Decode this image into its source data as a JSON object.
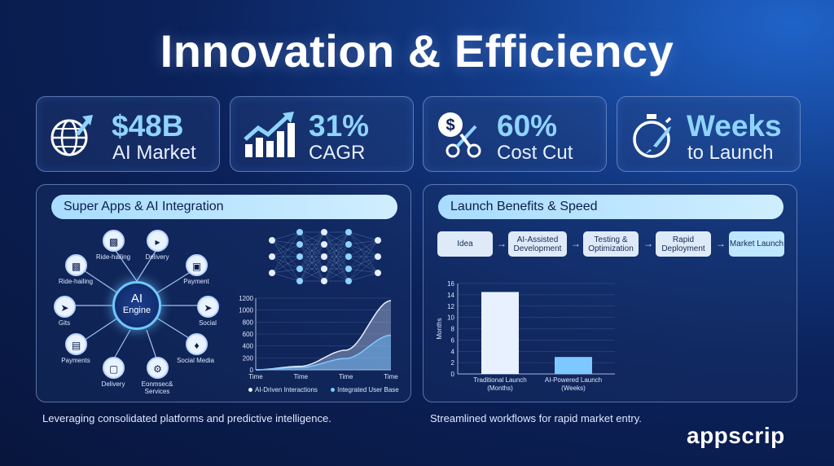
{
  "title": "Innovation & Efficiency",
  "stats": [
    {
      "value": "$48B",
      "label": "AI Market",
      "icon": "globe-growth-icon"
    },
    {
      "value": "31%",
      "label": "CAGR",
      "icon": "growth-chart-icon"
    },
    {
      "value": "60%",
      "label": "Cost Cut",
      "icon": "cost-cut-icon"
    },
    {
      "value": "Weeks",
      "label": "to Launch",
      "icon": "stopwatch-rocket-icon"
    }
  ],
  "left_panel": {
    "heading": "Super Apps & AI Integration",
    "engine": {
      "line1": "AI",
      "line2": "Engine"
    },
    "hubs": [
      {
        "label": "Ride-hailing",
        "icon": "car-icon"
      },
      {
        "label": "Delivery",
        "icon": "truck-icon"
      },
      {
        "label": "Ride-hailing",
        "icon": "car-icon"
      },
      {
        "label": "Payment",
        "icon": "wallet-icon"
      },
      {
        "label": "Gits",
        "icon": "rocket-icon"
      },
      {
        "label": "Social",
        "icon": "send-icon"
      },
      {
        "label": "Payments",
        "icon": "card-icon"
      },
      {
        "label": "Social Media",
        "icon": "bird-icon"
      },
      {
        "label": "Delivery",
        "icon": "bag-icon"
      },
      {
        "label": "Eonmsec& Services",
        "icon": "gear-icon"
      }
    ],
    "caption": "Leveraging consolidated platforms and predictive intelligence."
  },
  "right_panel": {
    "heading": "Launch Benefits & Speed",
    "steps": [
      "Idea",
      "AI-Assisted Development",
      "Testing & Optimization",
      "Rapid Deployment",
      "Market Launch"
    ],
    "caption": "Streamlined workflows for rapid market entry."
  },
  "logo": "appscrip",
  "chart_data": [
    {
      "type": "area",
      "x": [
        "Time",
        "Time",
        "Time",
        "Time"
      ],
      "ylim": [
        0,
        1200
      ],
      "yticks": [
        0,
        200,
        400,
        600,
        800,
        1000,
        1200
      ],
      "series": [
        {
          "name": "AI-Driven Interactions",
          "values": [
            0,
            60,
            330,
            1160
          ]
        },
        {
          "name": "Integrated User Base",
          "values": [
            0,
            40,
            190,
            580
          ]
        }
      ],
      "legend": "bottom"
    },
    {
      "type": "bar",
      "categories": [
        "Traditional Launch (Months)",
        "AI-Powered Launch (Weeks)"
      ],
      "values": [
        14.5,
        3
      ],
      "ylabel": "Months",
      "ylim": [
        0,
        16
      ],
      "yticks": [
        0,
        2,
        4,
        6,
        8,
        10,
        12,
        14,
        16
      ]
    }
  ]
}
